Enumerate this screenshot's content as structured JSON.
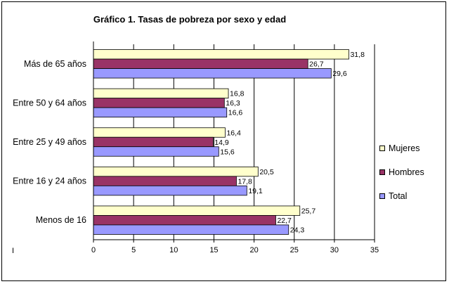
{
  "chart_data": {
    "type": "bar",
    "orientation": "horizontal",
    "title": "Gráfico 1. Tasas de pobreza por sexo y edad",
    "categories": [
      "Más de 65 años",
      "Entre 50 y 64 años",
      "Entre 25 y 49 años",
      "Entre 16 y 24 años",
      "Menos de 16"
    ],
    "series": [
      {
        "name": "Mujeres",
        "color": "#FFFFCC",
        "values": [
          31.8,
          16.8,
          16.4,
          20.5,
          25.7
        ],
        "labels": [
          "31,8",
          "16,8",
          "16,4",
          "20,5",
          "25,7"
        ]
      },
      {
        "name": "Hombres",
        "color": "#993366",
        "values": [
          26.7,
          16.3,
          14.9,
          17.8,
          22.7
        ],
        "labels": [
          "26,7",
          "16,3",
          "14,9",
          "17,8",
          "22,7"
        ]
      },
      {
        "name": "Total",
        "color": "#9999FF",
        "values": [
          29.6,
          16.6,
          15.6,
          19.1,
          24.3
        ],
        "labels": [
          "29,6",
          "16,6",
          "15,6",
          "19,1",
          "24,3"
        ]
      }
    ],
    "xticks": [
      "0",
      "5",
      "10",
      "15",
      "20",
      "25",
      "30",
      "35"
    ],
    "xlim": [
      0,
      35
    ],
    "grid": "vertical",
    "legend_position": "right"
  },
  "corner_mark": "I"
}
